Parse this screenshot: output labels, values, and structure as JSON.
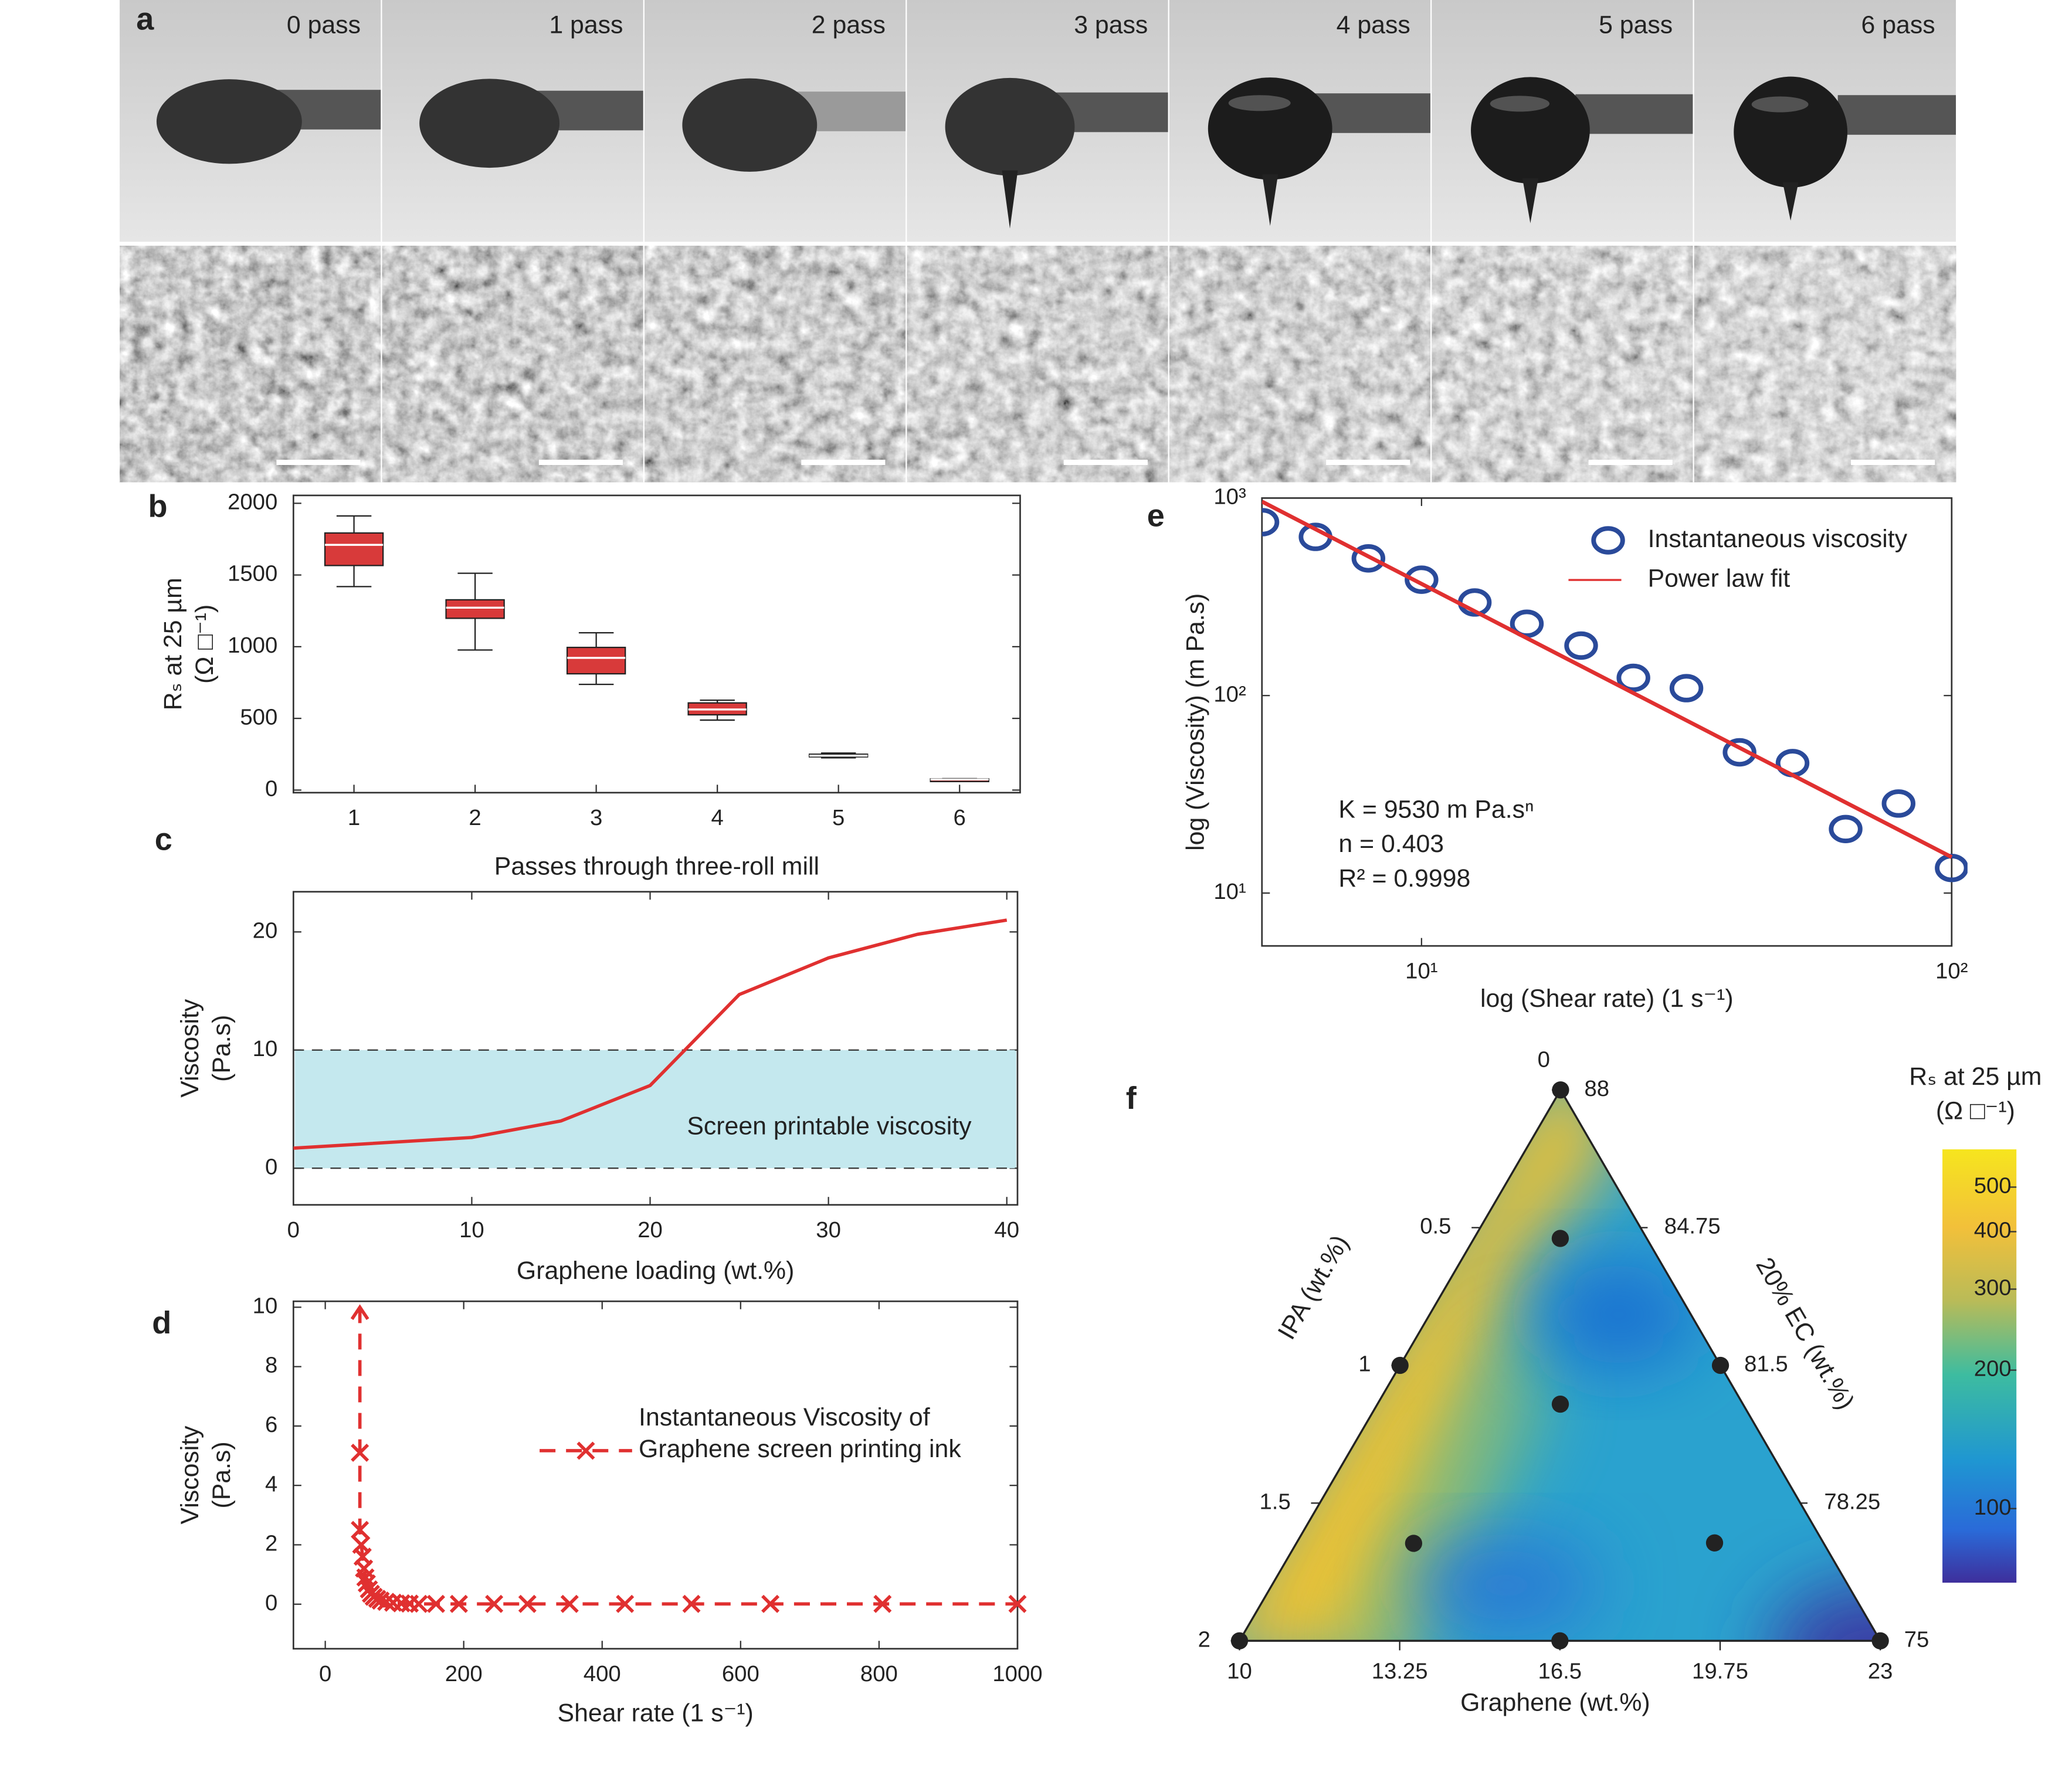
{
  "chart_data": [
    {
      "type": "image",
      "panel": "a",
      "labels": [
        "0 pass",
        "1 pass",
        "2 pass",
        "3 pass",
        "4 pass",
        "5 pass",
        "6 pass"
      ]
    },
    {
      "type": "box",
      "panel": "b",
      "categories": [
        "1",
        "2",
        "3",
        "4",
        "5",
        "6"
      ],
      "boxes": [
        {
          "min": 1419,
          "q1": 1566,
          "median": 1710,
          "q3": 1793,
          "max": 1912
        },
        {
          "min": 977,
          "q1": 1198,
          "median": 1272,
          "q3": 1327,
          "max": 1512
        },
        {
          "min": 737,
          "q1": 811,
          "median": 922,
          "q3": 995,
          "max": 1097
        },
        {
          "min": 488,
          "q1": 525,
          "median": 562,
          "q3": 608,
          "max": 627
        },
        {
          "min": 225,
          "q1": 232,
          "median": 240,
          "q3": 250,
          "max": 258
        },
        {
          "min": 68,
          "q1": 70,
          "median": 74,
          "q3": 78,
          "max": 80
        }
      ],
      "color": "#d83a3a",
      "xlim": [
        0.5,
        6.5
      ],
      "ylim": [
        -18,
        2055
      ],
      "yticks": [
        0,
        500,
        1000,
        1500,
        2000
      ],
      "xlabel": "Passes through three-roll mill",
      "ylabel": [
        "Rₛ at 25 µm",
        "(Ω □⁻¹)"
      ]
    },
    {
      "type": "line",
      "panel": "c",
      "x": [
        0,
        10,
        15,
        20,
        25,
        30,
        35,
        40
      ],
      "values": [
        1.7,
        2.6,
        4.0,
        7.0,
        14.7,
        17.8,
        19.8,
        21.0
      ],
      "color": "#e03030",
      "xlim": [
        0,
        40.6
      ],
      "ylim": [
        -3.1,
        23.4
      ],
      "xticks": [
        0,
        10,
        20,
        30,
        40
      ],
      "yticks": [
        0,
        10,
        20
      ],
      "band": {
        "range": [
          0,
          10
        ],
        "color": "#c4e8ee",
        "label": "Screen printable viscosity"
      },
      "xlabel": "Graphene loading (wt.%)",
      "ylabel": [
        "Viscosity",
        "(Pa.s)"
      ]
    },
    {
      "type": "line",
      "panel": "d",
      "marker": "x",
      "dashed": true,
      "legend": "right",
      "series": [
        {
          "name": "Instantaneous Viscosity of Graphene screen printing ink",
          "color": "#e03030",
          "x": [
            50,
            50,
            50,
            52,
            54,
            56,
            58,
            60,
            63,
            66,
            70,
            75,
            80,
            88,
            98,
            110,
            122,
            135,
            160,
            193,
            244,
            292,
            353,
            433,
            529,
            643,
            805,
            1000
          ],
          "values": [
            10,
            5.1,
            2.5,
            2.0,
            1.6,
            1.2,
            0.9,
            0.7,
            0.5,
            0.35,
            0.25,
            0.18,
            0.12,
            0.08,
            0.05,
            0.03,
            0.02,
            0.01,
            0.01,
            0.01,
            0.01,
            0.01,
            0.01,
            0.01,
            0.01,
            0.01,
            0.01,
            0.01
          ]
        }
      ],
      "xlim": [
        -46,
        1000
      ],
      "ylim": [
        -1.5,
        10.2
      ],
      "xticks": [
        0,
        200,
        400,
        600,
        800,
        1000
      ],
      "yticks": [
        0,
        2,
        4,
        6,
        8,
        10
      ],
      "xlabel": "Shear rate (1 s⁻¹)",
      "ylabel": [
        "Viscosity",
        "(Pa.s)"
      ]
    },
    {
      "type": "scatter",
      "panel": "e",
      "log": true,
      "legend": "upper right",
      "series": [
        {
          "name": "Instantaneous viscosity",
          "color": "#2a4a9a",
          "marker": "circle",
          "x": [
            5.01,
            6.31,
            7.94,
            10,
            12.6,
            15.8,
            20,
            25.1,
            31.6,
            39.8,
            50.1,
            63.1,
            79.4,
            100
          ],
          "values": [
            755,
            636,
            495,
            386,
            296,
            231,
            179,
            123,
            109,
            51.6,
            45.5,
            21.1,
            28.4,
            13.4
          ]
        },
        {
          "name": "Power law fit",
          "color": "#e03030",
          "x": [
            5,
            100
          ],
          "values": [
            960,
            15.2
          ]
        }
      ],
      "annotations": [
        "K = 9530 m Pa.sⁿ",
        "n = 0.403",
        "R² = 0.9998"
      ],
      "xlim": [
        5,
        100
      ],
      "ylim": [
        5.4,
        1000
      ],
      "xticks": [
        {
          "value": 10,
          "label": "10¹"
        },
        {
          "value": 100,
          "label": "10²"
        }
      ],
      "yticks": [
        {
          "value": 10,
          "label": "10¹"
        },
        {
          "value": 100,
          "label": "10²"
        },
        {
          "value": 1000,
          "label": "10³"
        }
      ],
      "xlabel": "log (Shear rate) (1 s⁻¹)",
      "ylabel": "log (Viscosity) (m Pa.s)"
    },
    {
      "type": "ternary",
      "panel": "f",
      "left": {
        "label": "IPA (wt.%)",
        "lim": [
          0,
          2
        ],
        "ticks": [
          0,
          0.5,
          1,
          1.5,
          2
        ]
      },
      "right": {
        "label": "20% EC (wt.%)",
        "lim": [
          88,
          75
        ],
        "ticks": [
          88,
          84.75,
          81.5,
          78.25,
          75
        ]
      },
      "bottom": {
        "label": "Graphene (wt.%)",
        "lim": [
          10,
          23
        ],
        "ticks": [
          10,
          13.25,
          16.5,
          19.75,
          23
        ]
      },
      "points": [
        {
          "ipa": 0,
          "graphene": 10
        },
        {
          "ipa": 0.27,
          "graphene": 11.75
        },
        {
          "ipa": 1,
          "graphene": 10
        },
        {
          "ipa": 0,
          "graphene": 16.5
        },
        {
          "ipa": 0.57,
          "graphene": 13.71
        },
        {
          "ipa": 1.28,
          "graphene": 12.38
        },
        {
          "ipa": 0.34,
          "graphene": 18.48
        },
        {
          "ipa": 2,
          "graphene": 10
        },
        {
          "ipa": 1,
          "graphene": 16.5
        },
        {
          "ipa": 0,
          "graphene": 23
        }
      ],
      "point_color": "#222222",
      "colorbar": {
        "label": [
          "Rₛ at 25 µm",
          "(Ω □⁻¹)"
        ],
        "clim": [
          69,
          604
        ],
        "log": true,
        "ticks": [
          100,
          200,
          300,
          400,
          500
        ]
      }
    }
  ]
}
